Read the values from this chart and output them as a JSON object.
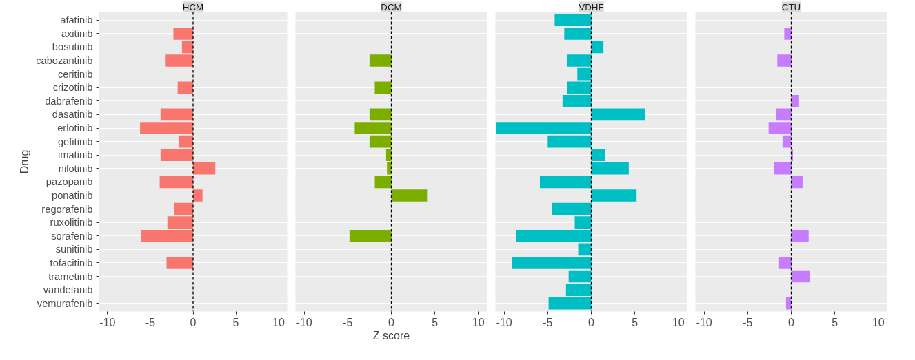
{
  "chart_data": [
    {
      "type": "bar",
      "orientation": "horizontal",
      "title": "HCM",
      "ylabel": "Drug",
      "categories": [
        "afatinib",
        "axitinib",
        "bosutinib",
        "cabozantinib",
        "ceritinib",
        "crizotinib",
        "dabrafenib",
        "dasatinib",
        "erlotinib",
        "gefitinib",
        "imatinib",
        "nilotinib",
        "pazopanib",
        "ponatinib",
        "regorafenib",
        "ruxolitinib",
        "sorafenib",
        "sunitinib",
        "tofacitinib",
        "trametinib",
        "vandetanib",
        "vemurafenib"
      ],
      "color": "#f8766d",
      "values": [
        null,
        -2.3,
        -1.3,
        -3.2,
        null,
        -1.8,
        null,
        -3.8,
        -6.2,
        -1.7,
        -3.8,
        2.6,
        -3.9,
        1.1,
        -2.2,
        -3.0,
        -6.1,
        null,
        -3.1,
        null,
        null,
        null
      ],
      "xlim": [
        -11,
        11
      ],
      "xticks": [
        -10,
        -5,
        0,
        5,
        10
      ],
      "grid": "y",
      "ref_lines": [
        {
          "axis": "x",
          "value": 0,
          "color": "#000000",
          "line_style": "dashed"
        }
      ]
    },
    {
      "type": "bar",
      "orientation": "horizontal",
      "title": "DCM",
      "xlabel": "Z score",
      "tick_labels": "x",
      "categories": [
        "afatinib",
        "axitinib",
        "bosutinib",
        "cabozantinib",
        "ceritinib",
        "crizotinib",
        "dabrafenib",
        "dasatinib",
        "erlotinib",
        "gefitinib",
        "imatinib",
        "nilotinib",
        "pazopanib",
        "ponatinib",
        "regorafenib",
        "ruxolitinib",
        "sorafenib",
        "sunitinib",
        "tofacitinib",
        "trametinib",
        "vandetanib",
        "vemurafenib"
      ],
      "color": "#7cae00",
      "values": [
        null,
        null,
        null,
        -2.5,
        null,
        -1.9,
        null,
        -2.5,
        -4.2,
        -2.5,
        -0.6,
        -0.5,
        -1.9,
        4.1,
        null,
        null,
        -4.8,
        null,
        null,
        null,
        null,
        null
      ],
      "xlim": [
        -11,
        11
      ],
      "xticks": [
        -10,
        -5,
        0,
        5,
        10
      ],
      "grid": "y",
      "ref_lines": [
        {
          "axis": "x",
          "value": 0,
          "color": "#000000",
          "line_style": "dashed"
        }
      ]
    },
    {
      "type": "bar",
      "orientation": "horizontal",
      "title": "VDHF",
      "tick_labels": "x",
      "categories": [
        "afatinib",
        "axitinib",
        "bosutinib",
        "cabozantinib",
        "ceritinib",
        "crizotinib",
        "dabrafenib",
        "dasatinib",
        "erlotinib",
        "gefitinib",
        "imatinib",
        "nilotinib",
        "pazopanib",
        "ponatinib",
        "regorafenib",
        "ruxolitinib",
        "sorafenib",
        "sunitinib",
        "tofacitinib",
        "trametinib",
        "vandetanib",
        "vemurafenib"
      ],
      "color": "#00bfc4",
      "values": [
        -4.2,
        -3.1,
        1.4,
        -2.8,
        -1.6,
        -2.8,
        -3.3,
        6.2,
        -10.9,
        -5.0,
        1.6,
        4.3,
        -5.9,
        5.2,
        -4.5,
        -1.9,
        -8.6,
        -1.5,
        -9.1,
        -2.6,
        -2.9,
        -4.9
      ],
      "xlim": [
        -11,
        11
      ],
      "xticks": [
        -10,
        -5,
        0,
        5,
        10
      ],
      "grid": "y",
      "ref_lines": [
        {
          "axis": "x",
          "value": 0,
          "color": "#000000",
          "line_style": "dashed"
        }
      ]
    },
    {
      "type": "bar",
      "orientation": "horizontal",
      "title": "CTU",
      "tick_labels": "x",
      "categories": [
        "afatinib",
        "axitinib",
        "bosutinib",
        "cabozantinib",
        "ceritinib",
        "crizotinib",
        "dabrafenib",
        "dasatinib",
        "erlotinib",
        "gefitinib",
        "imatinib",
        "nilotinib",
        "pazopanib",
        "ponatinib",
        "regorafenib",
        "ruxolitinib",
        "sorafenib",
        "sunitinib",
        "tofacitinib",
        "trametinib",
        "vandetanib",
        "vemurafenib"
      ],
      "color": "#c77cff",
      "values": [
        null,
        -0.8,
        null,
        -1.6,
        null,
        null,
        0.9,
        -1.7,
        -2.6,
        -1.0,
        0.2,
        -2.0,
        1.3,
        null,
        null,
        null,
        2.0,
        null,
        -1.4,
        2.1,
        null,
        -0.6
      ],
      "xlim": [
        -11,
        11
      ],
      "xticks": [
        -10,
        -5,
        0,
        5,
        10
      ],
      "grid": "y",
      "ref_lines": [
        {
          "axis": "x",
          "value": 0,
          "color": "#000000",
          "line_style": "dashed"
        }
      ]
    }
  ]
}
